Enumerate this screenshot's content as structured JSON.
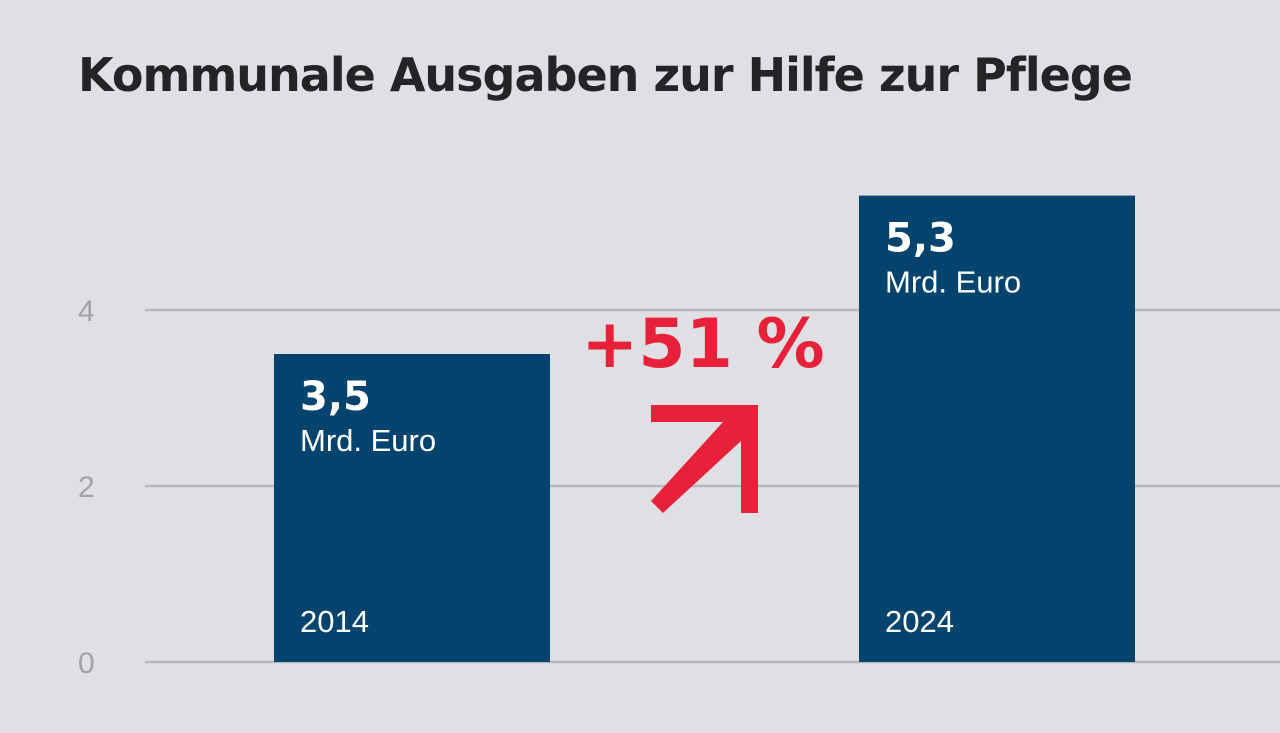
{
  "chart_data": {
    "type": "bar",
    "title": "Kommunale Ausgaben zur Hilfe zur Pflege",
    "categories": [
      "2014",
      "2024"
    ],
    "values": [
      3.5,
      5.3
    ],
    "value_labels": [
      "3,5",
      "5,3"
    ],
    "unit": "Mrd. Euro",
    "yticks": [
      "0",
      "2",
      "4"
    ],
    "ylim": [
      0,
      5.3
    ],
    "grid": true,
    "annotation": {
      "text": "+51 %",
      "icon": "arrow-up-right-icon",
      "color": "#e8213a"
    },
    "colors": {
      "bar": "#03446f",
      "background": "#e0dfe3",
      "text": "#242326",
      "tick": "#a3a2a7"
    }
  }
}
